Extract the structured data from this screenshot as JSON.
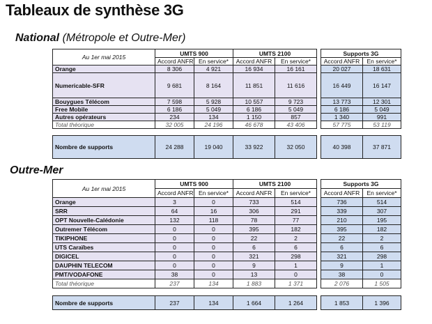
{
  "title": "Tableaux de synthèse 3G",
  "national": {
    "heading_bold": "National",
    "heading_rest": " (Métropole et Outre-Mer)",
    "date_label": "Au 1er mai 2015",
    "groups": [
      "UMTS 900",
      "UMTS 2100",
      "Supports 3G"
    ],
    "subheaders": [
      "Accord ANFR",
      "En service*",
      "Accord ANFR",
      "En service*",
      "Accord ANFR",
      "En service*"
    ],
    "rows": [
      {
        "label": "Orange",
        "values": [
          "8 306",
          "4 921",
          "16 934",
          "16 161",
          "20 027",
          "18 631"
        ]
      },
      {
        "label": "Numericable-SFR",
        "values": [
          "9 681",
          "8 164",
          "11 851",
          "11 616",
          "16 449",
          "16 147"
        ]
      },
      {
        "label": "Bouygues Télécom",
        "values": [
          "7 598",
          "5 928",
          "10 557",
          "9 723",
          "13 773",
          "12 301"
        ]
      },
      {
        "label": "Free Mobile",
        "values": [
          "6 186",
          "5 049",
          "6 186",
          "5 049",
          "6 186",
          "5 049"
        ]
      },
      {
        "label": "Autres opérateurs",
        "values": [
          "234",
          "134",
          "1 150",
          "857",
          "1 340",
          "991"
        ]
      }
    ],
    "total": {
      "label": "Total théorique",
      "values": [
        "32 005",
        "24 196",
        "46 678",
        "43 406",
        "57 775",
        "53 119"
      ]
    },
    "supports": {
      "label": "Nombre de supports",
      "values": [
        "24 288",
        "19 040",
        "33 922",
        "32 050",
        "40 398",
        "37 871"
      ]
    }
  },
  "outremer": {
    "heading": "Outre-Mer",
    "date_label": "Au 1er mai 2015",
    "groups": [
      "UMTS 900",
      "UMTS 2100",
      "Supports 3G"
    ],
    "subheaders": [
      "Accord ANFR",
      "En service*",
      "Accord ANFR",
      "En service*",
      "Accord ANFR",
      "En service*"
    ],
    "rows": [
      {
        "label": "Orange",
        "values": [
          "3",
          "0",
          "733",
          "514",
          "736",
          "514"
        ]
      },
      {
        "label": "SRR",
        "values": [
          "64",
          "16",
          "306",
          "291",
          "339",
          "307"
        ]
      },
      {
        "label": "OPT Nouvelle-Calédonie",
        "values": [
          "132",
          "118",
          "78",
          "77",
          "210",
          "195"
        ]
      },
      {
        "label": "Outremer Télécom",
        "values": [
          "0",
          "0",
          "395",
          "182",
          "395",
          "182"
        ]
      },
      {
        "label": "TIKIPHONE",
        "values": [
          "0",
          "0",
          "22",
          "2",
          "22",
          "2"
        ]
      },
      {
        "label": "UTS Caraïbes",
        "values": [
          "0",
          "0",
          "6",
          "6",
          "6",
          "6"
        ]
      },
      {
        "label": "DIGICEL",
        "values": [
          "0",
          "0",
          "321",
          "298",
          "321",
          "298"
        ]
      },
      {
        "label": "DAUPHIN TELECOM",
        "values": [
          "0",
          "0",
          "9",
          "1",
          "9",
          "1"
        ]
      },
      {
        "label": "PMT/VODAFONE",
        "values": [
          "38",
          "0",
          "13",
          "0",
          "38",
          "0"
        ]
      }
    ],
    "total": {
      "label": "Total théorique",
      "values": [
        "237",
        "134",
        "1 883",
        "1 371",
        "2 076",
        "1 505"
      ]
    },
    "supports": {
      "label": "Nombre de supports",
      "values": [
        "237",
        "134",
        "1 664",
        "1 264",
        "1 853",
        "1 396"
      ]
    }
  }
}
